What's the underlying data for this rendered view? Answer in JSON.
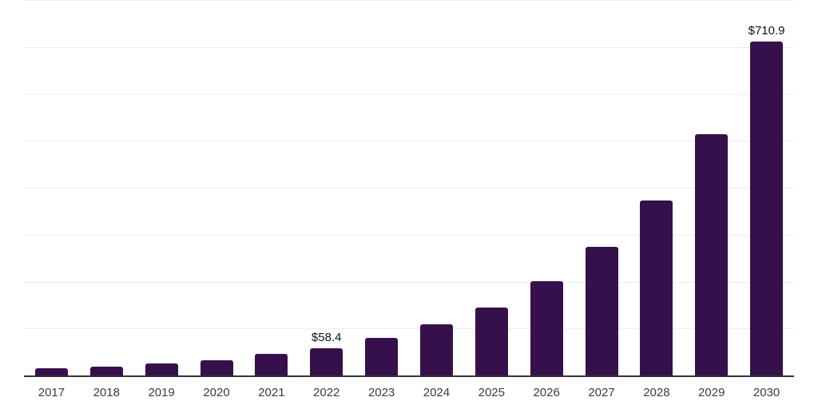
{
  "chart_data": {
    "type": "bar",
    "title": "",
    "xlabel": "",
    "ylabel": "",
    "categories": [
      "2017",
      "2018",
      "2019",
      "2020",
      "2021",
      "2022",
      "2023",
      "2024",
      "2025",
      "2026",
      "2027",
      "2028",
      "2029",
      "2030"
    ],
    "values": [
      15.0,
      18.5,
      25.2,
      32.0,
      45.3,
      58.4,
      80.2,
      108.9,
      144.9,
      201.5,
      273.6,
      372.8,
      514.9,
      710.9
    ],
    "value_labels": {
      "2022": "$58.4",
      "2030": "$710.9"
    },
    "ylim": [
      0,
      800
    ],
    "gridline_step": 100,
    "grid": "horizontal",
    "y_tick_labels_visible": false,
    "legend_position": "none",
    "colors": {
      "bar": "#36104A",
      "axis_line": "#333333",
      "gridline": "#ededed",
      "value_label_text": "#111111",
      "tick_label_text": "#3c3c3c",
      "background": "#ffffff"
    }
  }
}
